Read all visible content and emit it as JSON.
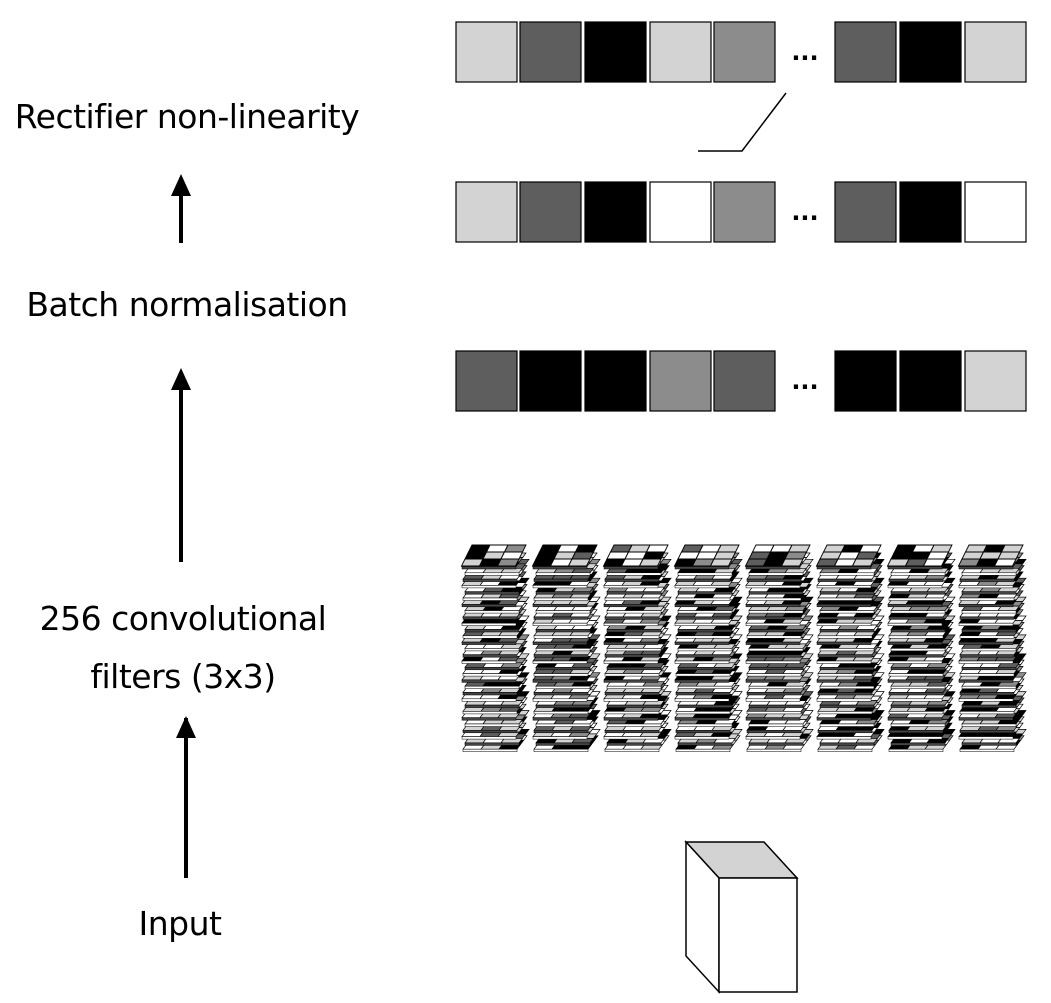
{
  "labels": {
    "rectifier": "Rectifier non-linearity",
    "batch_norm": "Batch normalisation",
    "conv_line1": "256 convolutional",
    "conv_line2": "filters (3x3)",
    "input": "Input"
  },
  "ellipsis": "...",
  "colors": {
    "white": "#ffffff",
    "light": "#d3d3d3",
    "mid": "#8c8c8c",
    "dark": "#5e5e5e",
    "black": "#000000"
  },
  "vectors": {
    "rectifier_output": [
      "light",
      "dark",
      "black",
      "light",
      "mid",
      "dark",
      "black",
      "light"
    ],
    "batch_norm_output": [
      "light",
      "dark",
      "black",
      "white",
      "mid",
      "dark",
      "black",
      "white"
    ],
    "conv_output": [
      "dark",
      "black",
      "black",
      "mid",
      "dark",
      "black",
      "black",
      "light"
    ]
  },
  "filters": {
    "stack_count": 8,
    "grid": "3x3"
  }
}
